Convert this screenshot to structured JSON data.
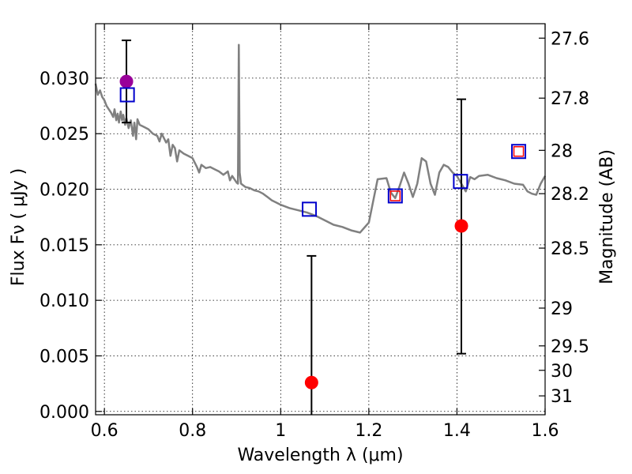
{
  "chart_data": {
    "type": "scatter",
    "xlabel": "Wavelength  λ (μm)",
    "ylabel": "Flux  Fν  ( μJy )",
    "ylabel_right": "Magnitude (AB)",
    "xlim": [
      0.58,
      1.6
    ],
    "ylim": [
      -0.0003,
      0.0349
    ],
    "grid": true,
    "x_ticks": [
      {
        "value": 0.6,
        "label": "0.6"
      },
      {
        "value": 0.8,
        "label": "0.8"
      },
      {
        "value": 1.0,
        "label": "1"
      },
      {
        "value": 1.2,
        "label": "1.2"
      },
      {
        "value": 1.4,
        "label": "1.4"
      },
      {
        "value": 1.6,
        "label": "1.6"
      }
    ],
    "y_ticks": [
      {
        "value": 0.0,
        "label": "0.000"
      },
      {
        "value": 0.005,
        "label": "0.005"
      },
      {
        "value": 0.01,
        "label": "0.010"
      },
      {
        "value": 0.015,
        "label": "0.015"
      },
      {
        "value": 0.02,
        "label": "0.020"
      },
      {
        "value": 0.025,
        "label": "0.025"
      },
      {
        "value": 0.03,
        "label": "0.030"
      }
    ],
    "right_ticks": [
      {
        "flux": 0.0336,
        "label": "27.6"
      },
      {
        "flux": 0.0282,
        "label": "27.8"
      },
      {
        "flux": 0.0235,
        "label": "28"
      },
      {
        "flux": 0.0196,
        "label": "28.2"
      },
      {
        "flux": 0.0147,
        "label": "28.5"
      },
      {
        "flux": 0.0093,
        "label": "29"
      },
      {
        "flux": 0.0059,
        "label": "29.5"
      },
      {
        "flux": 0.0037,
        "label": "30"
      },
      {
        "flux": 0.0014,
        "label": "31"
      }
    ],
    "template_color": "#808080",
    "template_sed": [
      [
        0.58,
        0.0295
      ],
      [
        0.585,
        0.0285
      ],
      [
        0.59,
        0.0289
      ],
      [
        0.595,
        0.0283
      ],
      [
        0.6,
        0.028
      ],
      [
        0.605,
        0.0275
      ],
      [
        0.61,
        0.0272
      ],
      [
        0.615,
        0.0269
      ],
      [
        0.62,
        0.0265
      ],
      [
        0.623,
        0.0272
      ],
      [
        0.627,
        0.0262
      ],
      [
        0.63,
        0.0268
      ],
      [
        0.633,
        0.026
      ],
      [
        0.637,
        0.027
      ],
      [
        0.64,
        0.0262
      ],
      [
        0.643,
        0.0267
      ],
      [
        0.647,
        0.0258
      ],
      [
        0.65,
        0.0264
      ],
      [
        0.655,
        0.0255
      ],
      [
        0.66,
        0.0262
      ],
      [
        0.665,
        0.0248
      ],
      [
        0.668,
        0.026
      ],
      [
        0.672,
        0.0245
      ],
      [
        0.675,
        0.0263
      ],
      [
        0.68,
        0.0258
      ],
      [
        0.69,
        0.0256
      ],
      [
        0.7,
        0.0254
      ],
      [
        0.71,
        0.025
      ],
      [
        0.72,
        0.0248
      ],
      [
        0.725,
        0.0243
      ],
      [
        0.73,
        0.025
      ],
      [
        0.74,
        0.0242
      ],
      [
        0.745,
        0.0245
      ],
      [
        0.75,
        0.023
      ],
      [
        0.755,
        0.024
      ],
      [
        0.76,
        0.0237
      ],
      [
        0.765,
        0.0225
      ],
      [
        0.77,
        0.0235
      ],
      [
        0.78,
        0.0232
      ],
      [
        0.79,
        0.023
      ],
      [
        0.8,
        0.0228
      ],
      [
        0.81,
        0.022
      ],
      [
        0.815,
        0.0215
      ],
      [
        0.82,
        0.0222
      ],
      [
        0.83,
        0.0219
      ],
      [
        0.84,
        0.022
      ],
      [
        0.85,
        0.0218
      ],
      [
        0.86,
        0.0216
      ],
      [
        0.87,
        0.0213
      ],
      [
        0.88,
        0.0216
      ],
      [
        0.885,
        0.0208
      ],
      [
        0.89,
        0.0212
      ],
      [
        0.9,
        0.0206
      ],
      [
        0.903,
        0.0205
      ],
      [
        0.905,
        0.033
      ],
      [
        0.907,
        0.0215
      ],
      [
        0.91,
        0.0205
      ],
      [
        0.92,
        0.0202
      ],
      [
        0.93,
        0.0201
      ],
      [
        0.94,
        0.0199
      ],
      [
        0.95,
        0.0198
      ],
      [
        0.96,
        0.0196
      ],
      [
        0.97,
        0.0193
      ],
      [
        0.98,
        0.019
      ],
      [
        0.99,
        0.0188
      ],
      [
        1.0,
        0.0186
      ],
      [
        1.02,
        0.0183
      ],
      [
        1.04,
        0.0181
      ],
      [
        1.06,
        0.0179
      ],
      [
        1.08,
        0.0176
      ],
      [
        1.1,
        0.0172
      ],
      [
        1.12,
        0.0168
      ],
      [
        1.14,
        0.0166
      ],
      [
        1.16,
        0.0163
      ],
      [
        1.18,
        0.0161
      ],
      [
        1.2,
        0.017
      ],
      [
        1.22,
        0.0209
      ],
      [
        1.24,
        0.021
      ],
      [
        1.25,
        0.0197
      ],
      [
        1.26,
        0.0192
      ],
      [
        1.27,
        0.0203
      ],
      [
        1.28,
        0.0215
      ],
      [
        1.29,
        0.0205
      ],
      [
        1.3,
        0.0193
      ],
      [
        1.31,
        0.0205
      ],
      [
        1.32,
        0.0228
      ],
      [
        1.33,
        0.0225
      ],
      [
        1.34,
        0.0205
      ],
      [
        1.35,
        0.0195
      ],
      [
        1.36,
        0.0215
      ],
      [
        1.37,
        0.0222
      ],
      [
        1.38,
        0.022
      ],
      [
        1.39,
        0.0215
      ],
      [
        1.4,
        0.0212
      ],
      [
        1.41,
        0.0205
      ],
      [
        1.42,
        0.0198
      ],
      [
        1.43,
        0.0211
      ],
      [
        1.44,
        0.0209
      ],
      [
        1.45,
        0.0212
      ],
      [
        1.47,
        0.0213
      ],
      [
        1.49,
        0.021
      ],
      [
        1.51,
        0.0208
      ],
      [
        1.53,
        0.0205
      ],
      [
        1.55,
        0.0204
      ],
      [
        1.56,
        0.0198
      ],
      [
        1.57,
        0.0196
      ],
      [
        1.58,
        0.0195
      ],
      [
        1.59,
        0.0205
      ],
      [
        1.6,
        0.0212
      ]
    ],
    "observed": [
      {
        "x": 0.65,
        "y": 0.0297,
        "err_low": 0.026,
        "err_high": 0.0334,
        "color": "#990099"
      },
      {
        "x": 1.07,
        "y": 0.0026,
        "err_low": -0.0003,
        "err_high": 0.014,
        "color": "#ff0000"
      },
      {
        "x": 1.41,
        "y": 0.0167,
        "err_low": 0.0052,
        "err_high": 0.0281,
        "color": "#ff0000"
      }
    ],
    "model_blue": [
      {
        "x": 0.652,
        "y": 0.0285
      },
      {
        "x": 1.065,
        "y": 0.0182
      },
      {
        "x": 1.26,
        "y": 0.0194
      },
      {
        "x": 1.408,
        "y": 0.0207
      },
      {
        "x": 1.54,
        "y": 0.0234
      }
    ],
    "model_red": [
      {
        "x": 1.26,
        "y": 0.0194
      },
      {
        "x": 1.54,
        "y": 0.0234
      }
    ],
    "colors": {
      "blue_square": "#0000cc",
      "red_square": "#ff0000",
      "errorbar": "#000000"
    }
  }
}
